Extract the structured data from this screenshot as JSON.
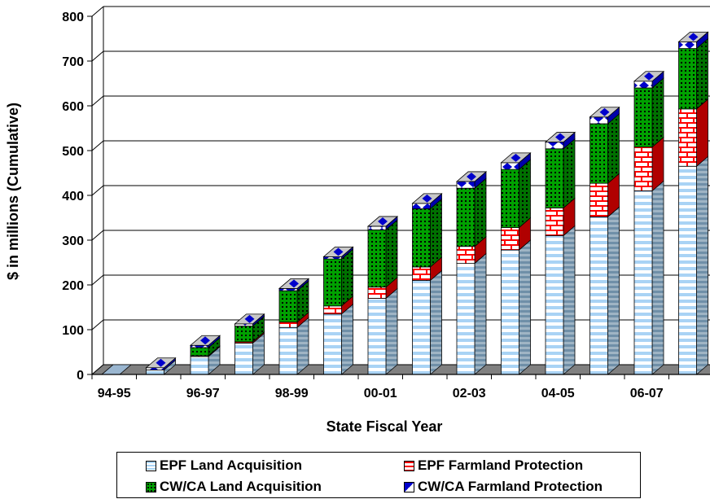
{
  "chart_data": {
    "type": "bar",
    "stacked": true,
    "three_d": true,
    "categories": [
      "94-95",
      "95-96",
      "96-97",
      "97-98",
      "98-99",
      "99-00",
      "00-01",
      "01-02",
      "02-03",
      "03-04",
      "04-05",
      "05-06",
      "06-07",
      "07-08"
    ],
    "x_tick_labels": [
      "94-95",
      "96-97",
      "98-99",
      "00-01",
      "02-03",
      "04-05",
      "06-07"
    ],
    "y_ticks": [
      "0",
      "100",
      "200",
      "300",
      "400",
      "500",
      "600",
      "700",
      "800"
    ],
    "ylim": [
      0,
      800
    ],
    "ylabel": "$ in millions (Cumulative)",
    "xlabel": "State Fiscal Year",
    "series": [
      {
        "name": "EPF Land Acquisition",
        "values": [
          0,
          10,
          40,
          70,
          105,
          135,
          170,
          210,
          248,
          278,
          310,
          352,
          410,
          465
        ]
      },
      {
        "name": "EPF Farmland Protection",
        "values": [
          0,
          0,
          2,
          3,
          12,
          18,
          25,
          30,
          38,
          50,
          62,
          75,
          98,
          128
        ]
      },
      {
        "name": "CW/CA Land Acquisition",
        "values": [
          0,
          0,
          18,
          35,
          70,
          105,
          128,
          130,
          130,
          130,
          132,
          133,
          132,
          135
        ]
      },
      {
        "name": "CW/CA Farmland Protection",
        "values": [
          0,
          5,
          5,
          5,
          5,
          5,
          8,
          12,
          15,
          15,
          15,
          15,
          15,
          15
        ]
      }
    ],
    "legend_position": "bottom",
    "grid": true
  },
  "colors": {
    "epf_land": "#cfe6f8",
    "epf_farm": "#ff0000",
    "cwca_land": "#008000",
    "cwca_farm": "#0000cc",
    "floor": "#808080"
  }
}
